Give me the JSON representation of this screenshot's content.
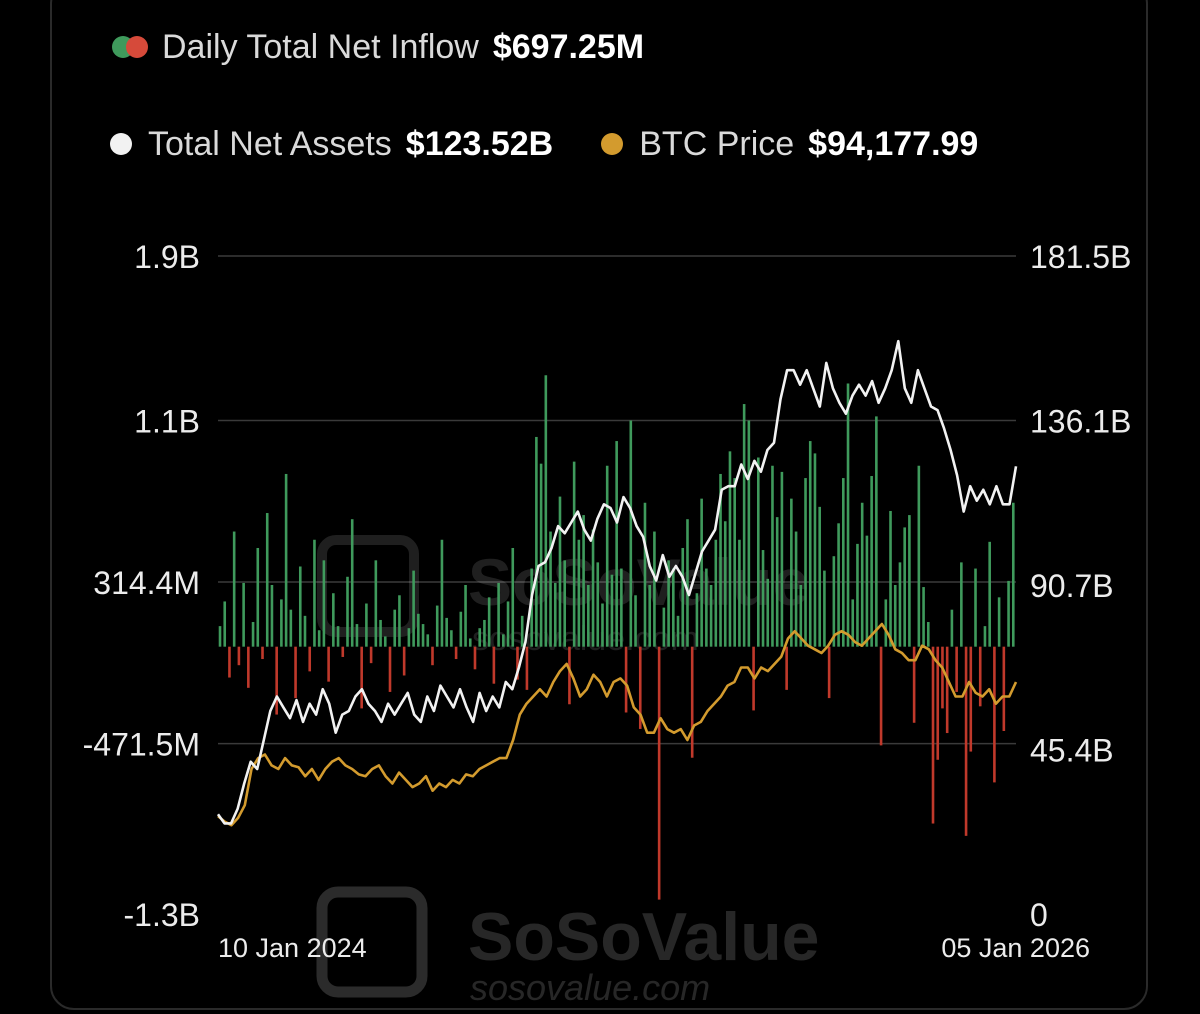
{
  "legend": {
    "inflow_label": "Daily Total Net Inflow",
    "inflow_value": "$697.25M",
    "assets_label": "Total Net Assets",
    "assets_value": "$123.52B",
    "btc_label": "BTC Price",
    "btc_value": "$94,177.99"
  },
  "watermark": {
    "brand": "SoSoValue",
    "site": "sosovalue.com"
  },
  "colors": {
    "inflow_positive": "#3f9a5c",
    "inflow_negative": "#c0392b",
    "net_assets": "#f2f2f2",
    "btc_price": "#d39b2e",
    "grid": "#3a3a3a",
    "axis_text": "#ececec"
  },
  "chart_data": {
    "type": "bar",
    "x_start_label": "10 Jan 2024",
    "x_end_label": "05 Jan 2026",
    "left_axis": {
      "tick_labels": [
        "1.9B",
        "1.1B",
        "314.4M",
        "-471.5M",
        "-1.3B"
      ],
      "tick_values": [
        1900000000,
        1100000000,
        314400000,
        -471500000,
        -1300000000
      ],
      "ylim": [
        -1300000000,
        1900000000
      ]
    },
    "right_axis": {
      "tick_labels": [
        "181.5B",
        "136.1B",
        "90.7B",
        "45.4B",
        "0"
      ],
      "tick_values": [
        181500000000,
        136100000000,
        90700000000,
        45400000000,
        0
      ],
      "ylim": [
        0,
        181500000000
      ]
    },
    "grid": true,
    "series": [
      {
        "name": "Daily Total Net Inflow",
        "type": "bar",
        "axis": "left",
        "unit": "USD (millions)",
        "values": [
          100,
          220,
          -150,
          560,
          -90,
          310,
          -200,
          120,
          480,
          -60,
          650,
          300,
          -330,
          230,
          840,
          180,
          -250,
          390,
          150,
          -120,
          520,
          80,
          420,
          -170,
          260,
          100,
          -50,
          340,
          620,
          110,
          -300,
          210,
          -80,
          420,
          130,
          50,
          -220,
          180,
          250,
          -140,
          90,
          370,
          160,
          110,
          60,
          -90,
          200,
          520,
          140,
          80,
          -60,
          170,
          300,
          40,
          -110,
          90,
          130,
          240,
          -180,
          310,
          60,
          220,
          480,
          -160,
          150,
          -210,
          380,
          1020,
          890,
          1320,
          560,
          310,
          730,
          420,
          -280,
          900,
          520,
          640,
          300,
          570,
          410,
          210,
          880,
          350,
          1000,
          380,
          -320,
          1100,
          250,
          -400,
          700,
          300,
          560,
          -1230,
          190,
          420,
          380,
          150,
          480,
          620,
          -540,
          260,
          720,
          380,
          300,
          520,
          840,
          610,
          950,
          820,
          520,
          1180,
          1100,
          -310,
          920,
          470,
          330,
          880,
          630,
          850,
          -210,
          720,
          560,
          300,
          820,
          1000,
          940,
          680,
          370,
          -250,
          440,
          600,
          820,
          1280,
          230,
          500,
          700,
          540,
          830,
          1120,
          -480,
          230,
          660,
          300,
          410,
          580,
          640,
          -370,
          880,
          290,
          120,
          -860,
          -550,
          -300,
          -420,
          180,
          -220,
          410,
          -920,
          -510,
          380,
          -290,
          100,
          510,
          -660,
          240,
          -410,
          320,
          700
        ]
      },
      {
        "name": "Total Net Assets",
        "type": "line",
        "axis": "right",
        "unit": "USD (billions)",
        "values": [
          27.5,
          25,
          25,
          29,
          36,
          42,
          40,
          48,
          56,
          60,
          57,
          54,
          59,
          53,
          58,
          55,
          62,
          58,
          50,
          55,
          56,
          60,
          62,
          58,
          56,
          53,
          58,
          55,
          58,
          61,
          55,
          53,
          60,
          56,
          63,
          60,
          57,
          62,
          57,
          53,
          61,
          56,
          60,
          57,
          64,
          62,
          68,
          75,
          88,
          96,
          97,
          101,
          107,
          105,
          108,
          111,
          106,
          103,
          109,
          113,
          112,
          108,
          115,
          112,
          107,
          104,
          96,
          92,
          99,
          93,
          96,
          93,
          88,
          94,
          100,
          103,
          106,
          117,
          118,
          118,
          124,
          120,
          125,
          122,
          128,
          130,
          142,
          150,
          150,
          146,
          150,
          145,
          140,
          152,
          145,
          141,
          138,
          143,
          146,
          143,
          147,
          141,
          145,
          150,
          158,
          145,
          141,
          150,
          145,
          140,
          139,
          134,
          128,
          121,
          111,
          118,
          114,
          117,
          113,
          118,
          113,
          113,
          123.5
        ]
      },
      {
        "name": "BTC Price",
        "type": "line",
        "axis": "right",
        "unit": "USD (scaled to right axis)",
        "values": [
          27,
          25.5,
          24.5,
          26.5,
          30,
          40,
          43,
          44,
          41,
          40,
          43,
          41,
          40.5,
          38,
          40,
          37,
          40,
          42,
          43,
          41,
          40,
          38.5,
          38,
          40,
          41,
          38,
          36,
          39,
          37,
          35,
          36,
          38,
          34,
          36,
          35,
          37,
          36,
          38.5,
          38,
          40,
          41,
          42,
          43,
          43,
          48,
          55,
          58,
          60,
          62,
          60,
          64,
          67,
          69,
          65,
          60,
          62,
          66,
          64,
          60,
          64,
          65,
          63,
          57,
          55,
          50,
          50,
          54,
          51,
          50,
          51,
          48,
          52,
          53,
          56,
          58,
          60,
          63,
          64,
          68,
          68,
          65,
          68,
          67,
          69,
          71,
          76,
          78,
          76,
          74,
          73,
          72,
          74,
          77,
          78,
          77,
          75,
          74,
          76,
          78,
          80,
          77,
          73,
          72,
          70,
          70,
          74,
          73,
          70,
          68,
          64,
          60,
          60,
          64,
          61,
          60,
          62,
          58,
          60,
          60,
          64
        ]
      }
    ]
  }
}
